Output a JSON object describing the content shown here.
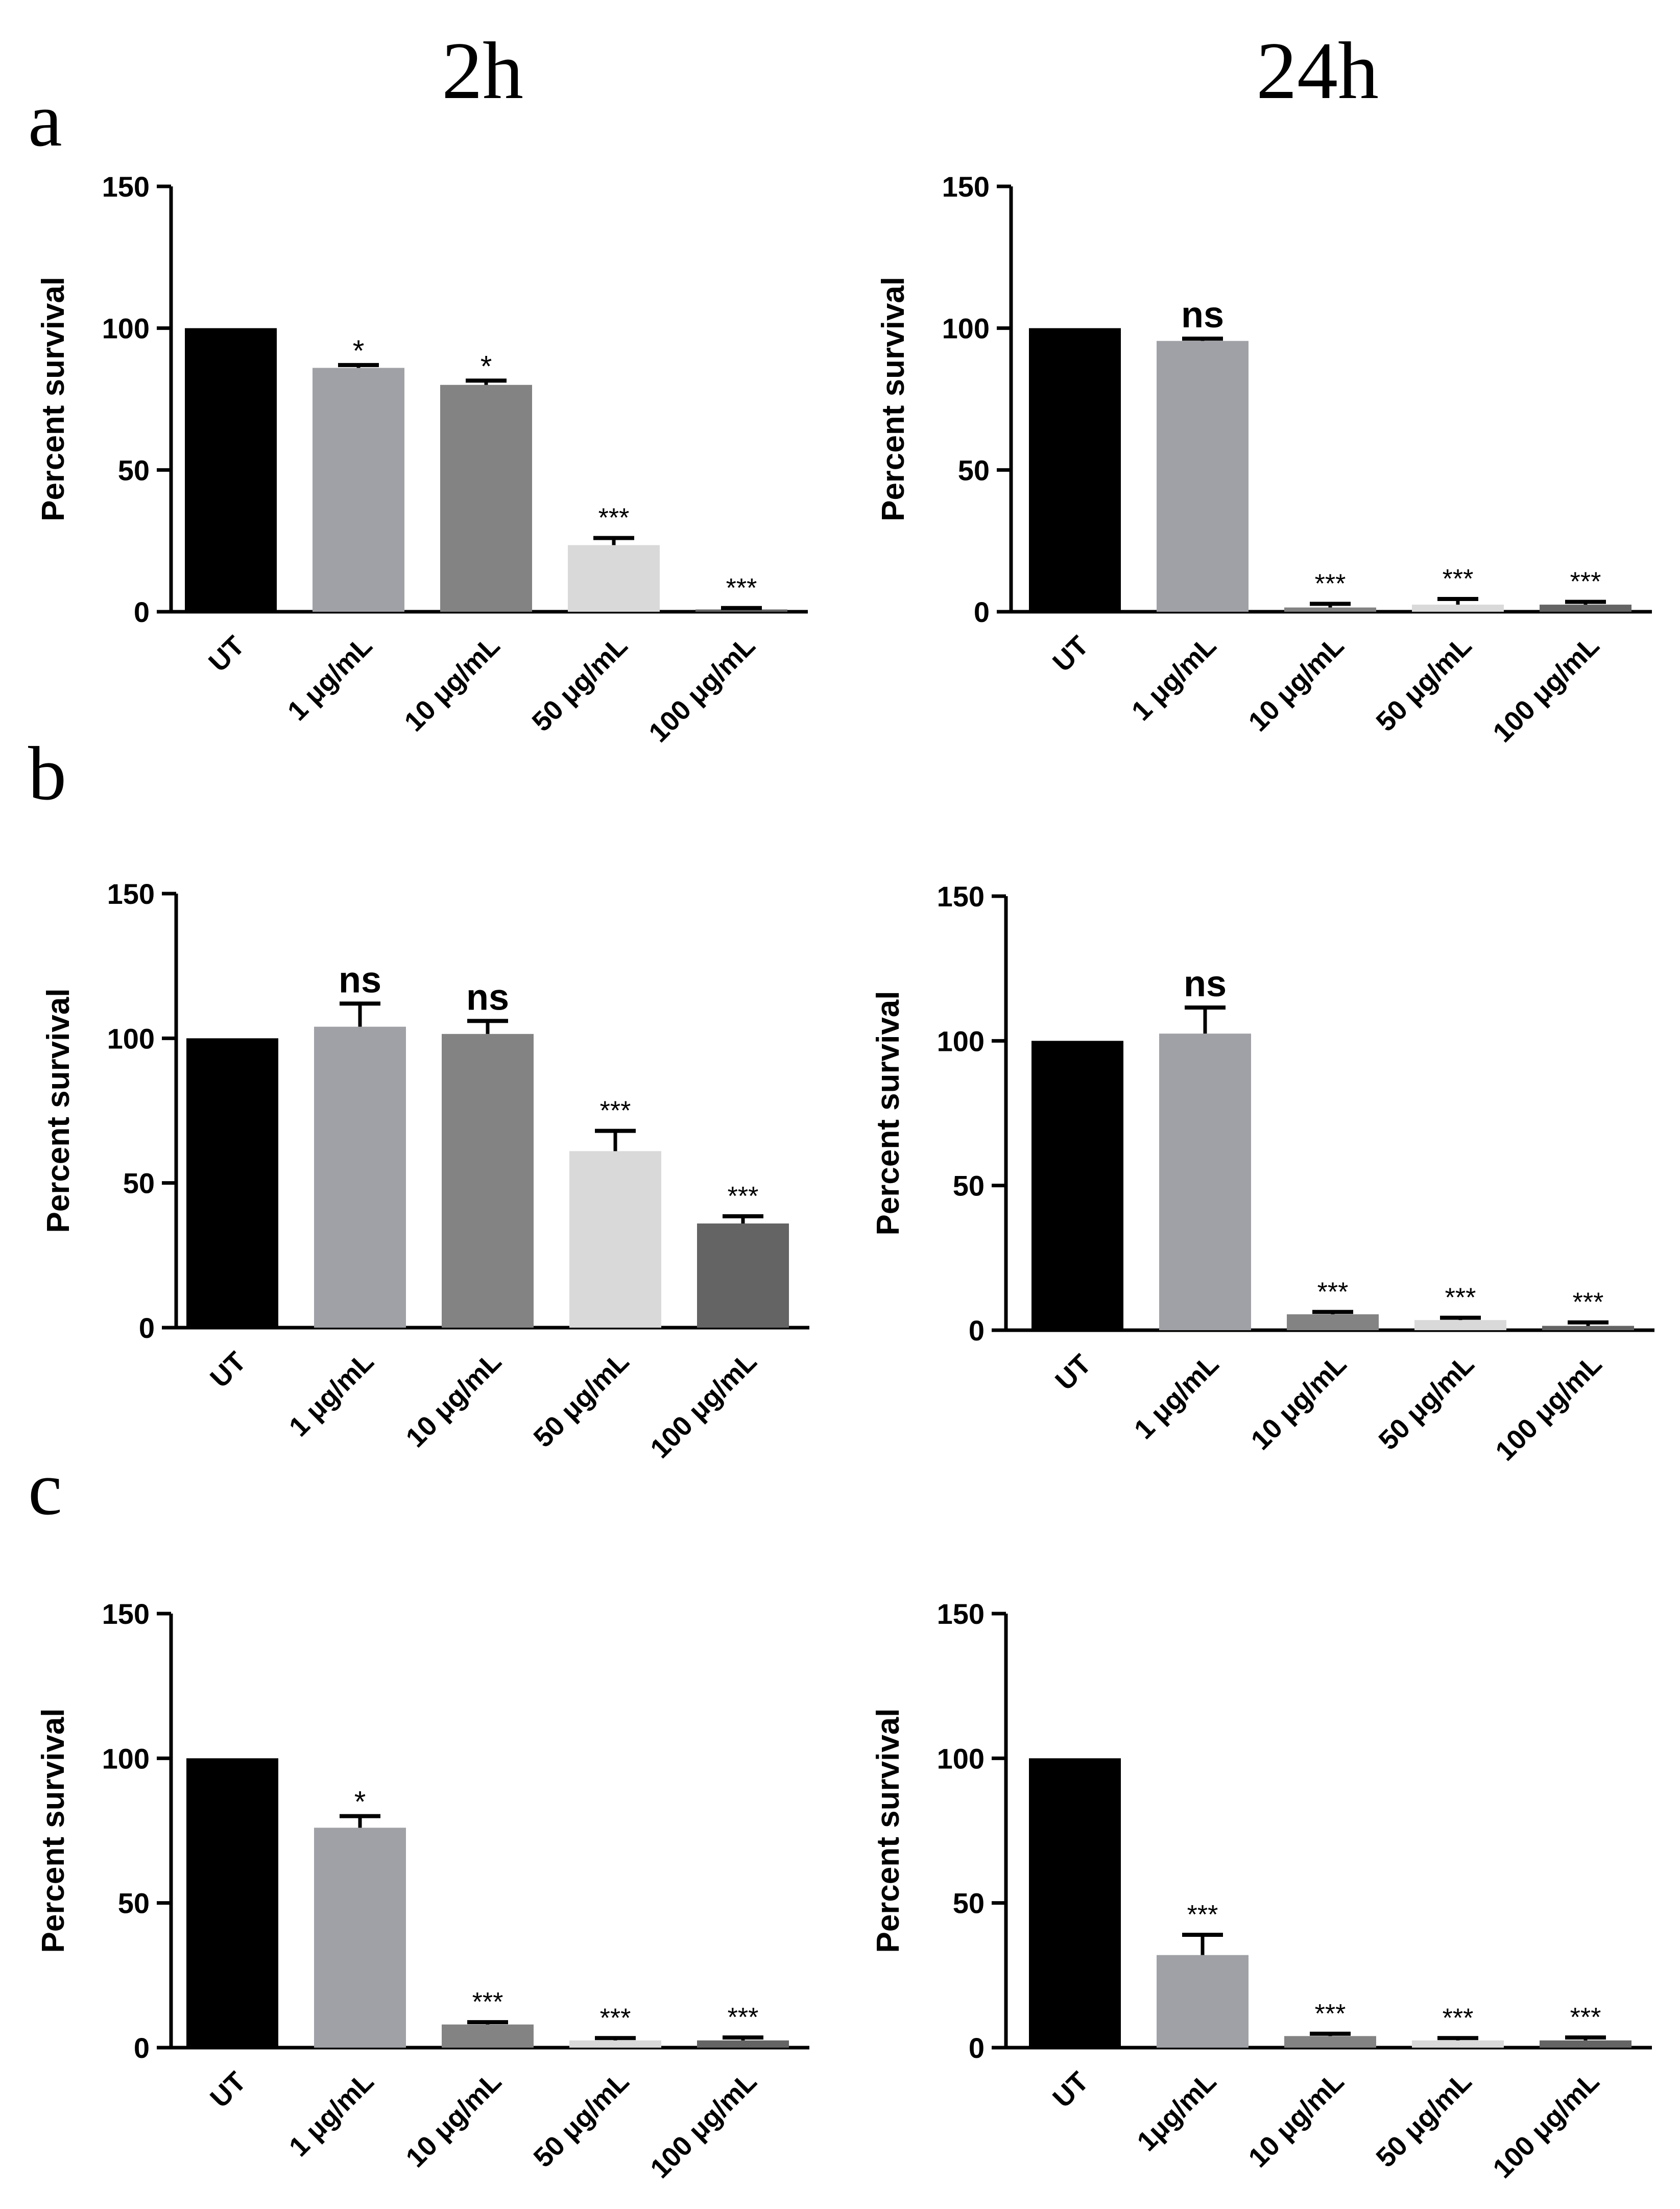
{
  "figure": {
    "col_titles": [
      "2h",
      "24h"
    ],
    "panel_letters": [
      "a",
      "b",
      "c"
    ]
  },
  "colors": {
    "UT": "#000000",
    "1ug": "#a0a1a6",
    "10ug": "#838383",
    "50ug": "#d9d9d9",
    "100ug": "#646464",
    "axis": "#000000"
  },
  "chart_data": [
    {
      "id": "a-2h",
      "panel": "a",
      "time": "2h",
      "type": "bar",
      "ylabel": "Percent survival",
      "ylim": [
        0,
        150
      ],
      "yticks": [
        0,
        50,
        100,
        150
      ],
      "categories": [
        "UT",
        "1 μg/mL",
        "10 μg/mL",
        "50 μg/mL",
        "100 μg/mL"
      ],
      "values": [
        100,
        86,
        80,
        23.5,
        0.8
      ],
      "errors": [
        0,
        1,
        1.5,
        2.5,
        0.5
      ],
      "significance": [
        "",
        "*",
        "*",
        "***",
        "***"
      ],
      "bar_colors": [
        "#000000",
        "#a0a1a6",
        "#838383",
        "#d9d9d9",
        "#646464"
      ]
    },
    {
      "id": "a-24h",
      "panel": "a",
      "time": "24h",
      "type": "bar",
      "ylabel": "Percent survival",
      "ylim": [
        0,
        150
      ],
      "yticks": [
        0,
        50,
        100,
        150
      ],
      "categories": [
        "UT",
        "1 μg/mL",
        "10 μg/mL",
        "50 μg/mL",
        "100 μg/mL"
      ],
      "values": [
        100,
        95.5,
        1.5,
        2.5,
        2.5
      ],
      "errors": [
        0,
        0.8,
        1.3,
        2,
        1
      ],
      "significance": [
        "",
        "ns",
        "***",
        "***",
        "***"
      ],
      "bar_colors": [
        "#000000",
        "#a0a1a6",
        "#838383",
        "#d9d9d9",
        "#646464"
      ]
    },
    {
      "id": "b-2h",
      "panel": "b",
      "time": "2h",
      "type": "bar",
      "ylabel": "Percent survival",
      "ylim": [
        0,
        150
      ],
      "yticks": [
        0,
        50,
        100,
        150
      ],
      "categories": [
        "UT",
        "1 μg/mL",
        "10 μg/mL",
        "50 μg/mL",
        "100 μg/mL"
      ],
      "values": [
        100,
        104,
        101.5,
        61,
        36
      ],
      "errors": [
        0,
        8,
        4.5,
        7,
        2.5
      ],
      "significance": [
        "",
        "ns",
        "ns",
        "***",
        "***"
      ],
      "bar_colors": [
        "#000000",
        "#a0a1a6",
        "#838383",
        "#d9d9d9",
        "#646464"
      ]
    },
    {
      "id": "b-24h",
      "panel": "b",
      "time": "24h",
      "type": "bar",
      "ylabel": "Percent survival",
      "ylim": [
        0,
        150
      ],
      "yticks": [
        0,
        50,
        100,
        150
      ],
      "categories": [
        "UT",
        "1 μg/mL",
        "10 μg/mL",
        "50 μg/mL",
        "100 μg/mL"
      ],
      "values": [
        100,
        102.5,
        5.5,
        3.5,
        1.5
      ],
      "errors": [
        0,
        9,
        0.8,
        0.8,
        1.2
      ],
      "significance": [
        "",
        "ns",
        "***",
        "***",
        "***"
      ],
      "bar_colors": [
        "#000000",
        "#a0a1a6",
        "#838383",
        "#d9d9d9",
        "#646464"
      ]
    },
    {
      "id": "c-2h",
      "panel": "c",
      "time": "2h",
      "type": "bar",
      "ylabel": "Percent survival",
      "ylim": [
        0,
        150
      ],
      "yticks": [
        0,
        50,
        100,
        150
      ],
      "categories": [
        "UT",
        "1 μg/mL",
        "10  μg/mL",
        "50  μg/mL",
        "100 μg/mL"
      ],
      "values": [
        100,
        76,
        8,
        2.5,
        2.5
      ],
      "errors": [
        0,
        4,
        0.8,
        0.8,
        1
      ],
      "significance": [
        "",
        "*",
        "***",
        "***",
        "***"
      ],
      "bar_colors": [
        "#000000",
        "#a0a1a6",
        "#838383",
        "#d9d9d9",
        "#646464"
      ]
    },
    {
      "id": "c-24h",
      "panel": "c",
      "time": "24h",
      "type": "bar",
      "ylabel": "Percent survival",
      "ylim": [
        0,
        150
      ],
      "yticks": [
        0,
        50,
        100,
        150
      ],
      "categories": [
        "UT",
        "1μg/mL",
        "10 μg/mL",
        "50 μg/mL",
        "100 μg/mL"
      ],
      "values": [
        100,
        32,
        4,
        2.5,
        2.5
      ],
      "errors": [
        0,
        7,
        0.8,
        0.8,
        1
      ],
      "significance": [
        "",
        "***",
        "***",
        "***",
        "***"
      ],
      "bar_colors": [
        "#000000",
        "#a0a1a6",
        "#838383",
        "#d9d9d9",
        "#646464"
      ]
    }
  ]
}
